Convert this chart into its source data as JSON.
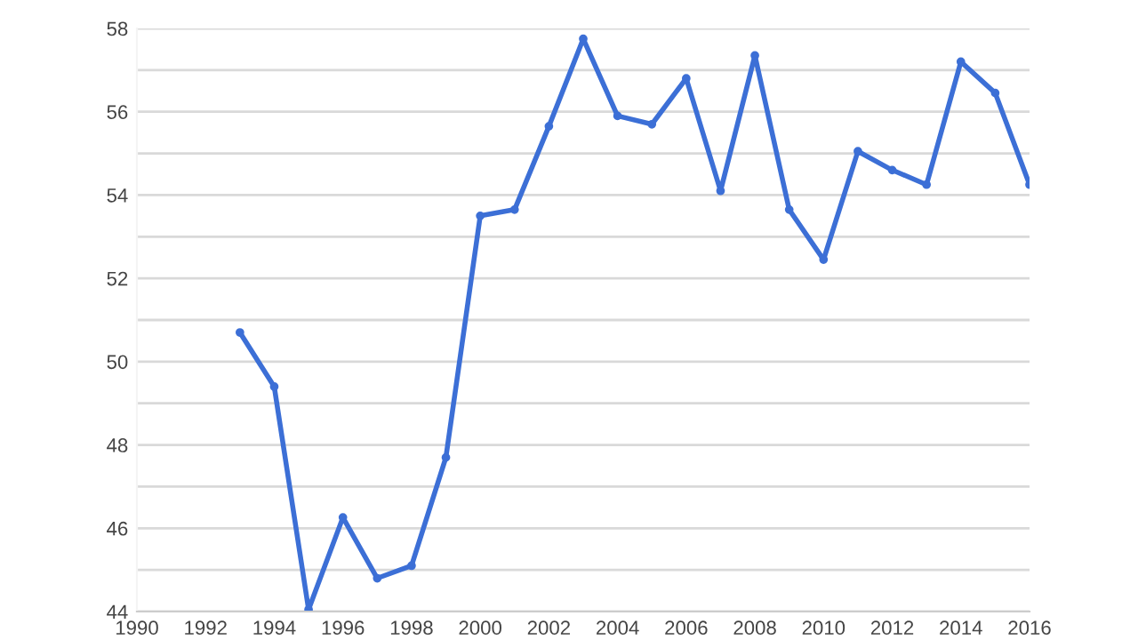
{
  "chart_data": {
    "type": "line",
    "x": [
      1993,
      1994,
      1995,
      1996,
      1997,
      1998,
      1999,
      2000,
      2001,
      2002,
      2003,
      2004,
      2005,
      2006,
      2007,
      2008,
      2009,
      2010,
      2011,
      2012,
      2013,
      2014,
      2015,
      2016
    ],
    "series": [
      {
        "color": "#3c6fd6",
        "values": [
          50.7,
          49.4,
          44.05,
          46.26,
          44.8,
          45.1,
          47.7,
          53.5,
          53.65,
          55.65,
          57.75,
          55.9,
          55.7,
          56.8,
          54.1,
          57.35,
          53.65,
          52.45,
          55.05,
          54.6,
          54.25,
          57.2,
          56.45,
          54.25
        ]
      }
    ],
    "xlim": [
      1990,
      2016
    ],
    "xticks": [
      1990,
      1992,
      1994,
      1996,
      1998,
      2000,
      2002,
      2004,
      2006,
      2008,
      2010,
      2012,
      2014,
      2016
    ],
    "ylim": [
      44,
      58
    ],
    "yticks": [
      44,
      {
        "value": 45,
        "label": null
      },
      46,
      {
        "value": 47,
        "label": null
      },
      48,
      {
        "value": 49,
        "label": null
      },
      50,
      {
        "value": 51,
        "label": null
      },
      52,
      {
        "value": 53,
        "label": null
      },
      54,
      {
        "value": 55,
        "label": null
      },
      56,
      {
        "value": 57,
        "label": null
      },
      58
    ],
    "grid": "y",
    "marker": "circle",
    "line_style": "solid"
  }
}
